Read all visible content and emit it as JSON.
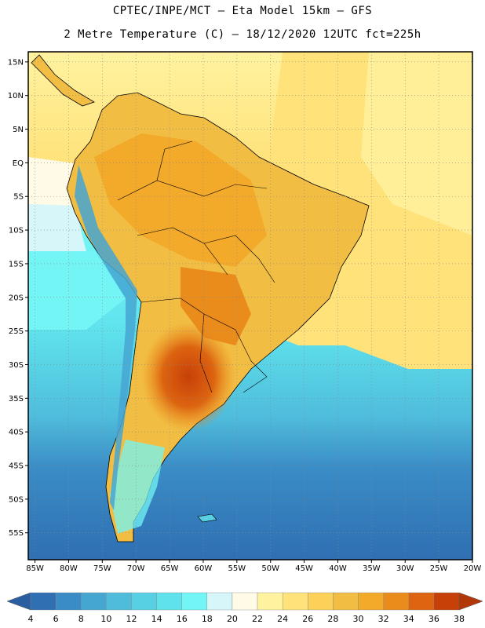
{
  "header": {
    "line1": "CPTEC/INPE/MCT –  Eta Model 15km – GFS",
    "line2": "2 Metre Temperature (C) – 18/12/2020 12UTC fct=225h"
  },
  "map": {
    "lat_ticks": [
      "15N",
      "10N",
      "5N",
      "EQ",
      "5S",
      "10S",
      "15S",
      "20S",
      "25S",
      "30S",
      "35S",
      "40S",
      "45S",
      "50S",
      "55S"
    ],
    "lon_ticks": [
      "85W",
      "80W",
      "75W",
      "70W",
      "65W",
      "60W",
      "55W",
      "50W",
      "45W",
      "40W",
      "35W",
      "30W",
      "25W",
      "20W"
    ]
  },
  "colorbar": {
    "labels": [
      "4",
      "6",
      "8",
      "10",
      "12",
      "14",
      "16",
      "18",
      "20",
      "22",
      "24",
      "26",
      "28",
      "30",
      "32",
      "34",
      "36",
      "38"
    ],
    "colors": [
      "#2f6fb2",
      "#3a8cc6",
      "#46a6d2",
      "#4fbcdc",
      "#58d0e4",
      "#5fe2ec",
      "#73f5f5",
      "#d6f6fa",
      "#fffbe6",
      "#fff3a0",
      "#ffe27a",
      "#fbd15a",
      "#f2bd43",
      "#f3a92a",
      "#ea8c1c",
      "#dd6410",
      "#c64008"
    ],
    "lo_color": "#2a5ea0",
    "hi_color": "#b13608"
  },
  "legend_icons": [
    "colorbar-left-arrow-icon",
    "colorbar-right-arrow-icon"
  ]
}
